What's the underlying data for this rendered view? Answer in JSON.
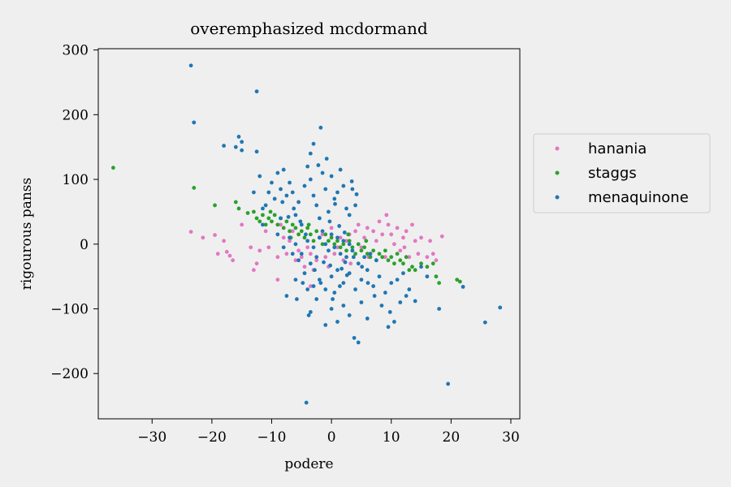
{
  "chart_data": {
    "type": "scatter",
    "title": "overemphasized mcdormand",
    "xlabel": "podere",
    "ylabel": "rigourous panss",
    "xlim": [
      -39,
      31.5
    ],
    "ylim": [
      -270,
      302
    ],
    "xticks": [
      -30,
      -20,
      -10,
      0,
      10,
      20,
      30
    ],
    "yticks": [
      -200,
      -100,
      0,
      100,
      200,
      300
    ],
    "grid": false,
    "legend_position": "outside-right",
    "series": [
      {
        "name": "hanania",
        "color": "#e377c2",
        "points": [
          [
            -23.5,
            19
          ],
          [
            -21.5,
            10
          ],
          [
            -19.5,
            14
          ],
          [
            -19,
            -15
          ],
          [
            -18,
            5
          ],
          [
            -17.5,
            -12
          ],
          [
            -17,
            -18
          ],
          [
            -16.5,
            -25
          ],
          [
            -15,
            30
          ],
          [
            -13,
            -40
          ],
          [
            -12.5,
            -30
          ],
          [
            -12,
            -10
          ],
          [
            -11,
            20
          ],
          [
            -10.5,
            -5
          ],
          [
            -9,
            -55
          ],
          [
            -9,
            -20
          ],
          [
            -8,
            10
          ],
          [
            -7.5,
            -15
          ],
          [
            -7,
            5
          ],
          [
            -6,
            -25
          ],
          [
            -5.5,
            -10
          ],
          [
            -5,
            -20
          ],
          [
            -4.5,
            -35
          ],
          [
            -4,
            -5
          ],
          [
            -3.5,
            -65
          ],
          [
            -3.5,
            -15
          ],
          [
            -2.5,
            -25
          ],
          [
            -2,
            10
          ],
          [
            -1,
            -20
          ],
          [
            -0.5,
            -35
          ],
          [
            0.5,
            -15
          ],
          [
            1,
            -5
          ],
          [
            1.5,
            10
          ],
          [
            2,
            -25
          ],
          [
            2.5,
            5
          ],
          [
            3,
            15
          ],
          [
            3.5,
            -10
          ],
          [
            4,
            20
          ],
          [
            4.5,
            30
          ],
          [
            5,
            -5
          ],
          [
            5.5,
            10
          ],
          [
            6,
            25
          ],
          [
            6.5,
            -15
          ],
          [
            7,
            20
          ],
          [
            7.5,
            5
          ],
          [
            8,
            35
          ],
          [
            8.5,
            15
          ],
          [
            9,
            -20
          ],
          [
            9.5,
            30
          ],
          [
            10,
            15
          ],
          [
            10.5,
            0
          ],
          [
            11,
            25
          ],
          [
            11.5,
            -10
          ],
          [
            12,
            10
          ],
          [
            12.5,
            20
          ],
          [
            13,
            -20
          ],
          [
            13.5,
            30
          ],
          [
            14,
            5
          ],
          [
            14.5,
            -15
          ],
          [
            15,
            10
          ],
          [
            16,
            -20
          ],
          [
            16.5,
            5
          ],
          [
            17,
            -15
          ],
          [
            17.5,
            -25
          ],
          [
            18.5,
            12
          ],
          [
            -6.5,
            20
          ],
          [
            -3,
            -40
          ],
          [
            -1.5,
            15
          ],
          [
            0,
            25
          ],
          [
            3.2,
            -30
          ],
          [
            6.2,
            -20
          ],
          [
            9.2,
            45
          ],
          [
            12.2,
            -5
          ],
          [
            -8.5,
            30
          ],
          [
            -13.5,
            -5
          ]
        ]
      },
      {
        "name": "staggs",
        "color": "#2ca02c",
        "points": [
          [
            -36.5,
            118
          ],
          [
            -23,
            87
          ],
          [
            -19.5,
            60
          ],
          [
            -16,
            65
          ],
          [
            -15.5,
            55
          ],
          [
            -14,
            48
          ],
          [
            -13,
            50
          ],
          [
            -12.5,
            40
          ],
          [
            -12,
            35
          ],
          [
            -11.5,
            45
          ],
          [
            -11,
            30
          ],
          [
            -10.5,
            40
          ],
          [
            -10,
            35
          ],
          [
            -9.5,
            45
          ],
          [
            -9,
            30
          ],
          [
            -8.5,
            40
          ],
          [
            -8,
            25
          ],
          [
            -7.5,
            35
          ],
          [
            -7,
            20
          ],
          [
            -6.5,
            30
          ],
          [
            -6,
            25
          ],
          [
            -5.5,
            15
          ],
          [
            -5,
            20
          ],
          [
            -4.5,
            10
          ],
          [
            -4,
            25
          ],
          [
            -3.5,
            15
          ],
          [
            -3,
            5
          ],
          [
            -2.5,
            20
          ],
          [
            -2,
            10
          ],
          [
            -1.5,
            0
          ],
          [
            -1,
            15
          ],
          [
            -0.5,
            5
          ],
          [
            0,
            10
          ],
          [
            0.5,
            0
          ],
          [
            1,
            5
          ],
          [
            1.5,
            -5
          ],
          [
            2,
            0
          ],
          [
            2.5,
            -10
          ],
          [
            3,
            5
          ],
          [
            3.5,
            -5
          ],
          [
            4,
            -15
          ],
          [
            4.5,
            0
          ],
          [
            5,
            -10
          ],
          [
            5.5,
            -5
          ],
          [
            6,
            -15
          ],
          [
            6.5,
            -20
          ],
          [
            7,
            -10
          ],
          [
            7.5,
            -25
          ],
          [
            8,
            -15
          ],
          [
            8.5,
            -20
          ],
          [
            9,
            -10
          ],
          [
            9.5,
            -25
          ],
          [
            10,
            -20
          ],
          [
            10.5,
            -30
          ],
          [
            11,
            -15
          ],
          [
            11.5,
            -25
          ],
          [
            12,
            -30
          ],
          [
            12.5,
            -20
          ],
          [
            13,
            -40
          ],
          [
            13.5,
            -35
          ],
          [
            14,
            -40
          ],
          [
            15,
            -30
          ],
          [
            16,
            -35
          ],
          [
            17,
            -30
          ],
          [
            17.5,
            -50
          ],
          [
            18,
            -60
          ],
          [
            21,
            -55
          ],
          [
            21.5,
            -58
          ],
          [
            -3.8,
            30
          ],
          [
            2.8,
            15
          ],
          [
            5.8,
            5
          ],
          [
            -10.2,
            50
          ],
          [
            -6.8,
            10
          ]
        ]
      },
      {
        "name": "menaquinone",
        "color": "#1f77b4",
        "points": [
          [
            -23.5,
            276
          ],
          [
            -23,
            188
          ],
          [
            -18,
            152
          ],
          [
            -16,
            150
          ],
          [
            -15.5,
            166
          ],
          [
            -15,
            158
          ],
          [
            -15,
            145
          ],
          [
            -12.5,
            143
          ],
          [
            -12.5,
            236
          ],
          [
            -13,
            80
          ],
          [
            -12,
            105
          ],
          [
            -11.5,
            30
          ],
          [
            -11,
            60
          ],
          [
            -10,
            95
          ],
          [
            -9.5,
            70
          ],
          [
            -9,
            110
          ],
          [
            -8.5,
            85
          ],
          [
            -8,
            115
          ],
          [
            -7.5,
            75
          ],
          [
            -7,
            95
          ],
          [
            -6.5,
            80
          ],
          [
            -6,
            45
          ],
          [
            -5.5,
            65
          ],
          [
            -5,
            30
          ],
          [
            -4.5,
            90
          ],
          [
            -4,
            120
          ],
          [
            -3.5,
            140
          ],
          [
            -3.5,
            100
          ],
          [
            -3,
            155
          ],
          [
            -3,
            75
          ],
          [
            -2.5,
            60
          ],
          [
            -2,
            40
          ],
          [
            -1.5,
            110
          ],
          [
            -1,
            85
          ],
          [
            -0.5,
            50
          ],
          [
            0,
            105
          ],
          [
            0.5,
            70
          ],
          [
            1,
            80
          ],
          [
            1.5,
            115
          ],
          [
            2,
            90
          ],
          [
            2.5,
            55
          ],
          [
            3,
            45
          ],
          [
            3.5,
            85
          ],
          [
            4,
            60
          ],
          [
            -1.5,
            20
          ],
          [
            -1,
            0
          ],
          [
            -0.5,
            -10
          ],
          [
            0,
            15
          ],
          [
            0.5,
            -5
          ],
          [
            1,
            10
          ],
          [
            1.5,
            -15
          ],
          [
            2,
            5
          ],
          [
            2.5,
            -20
          ],
          [
            3,
            0
          ],
          [
            3.5,
            -10
          ],
          [
            -2,
            10
          ],
          [
            -3,
            -5
          ],
          [
            -4,
            5
          ],
          [
            -5,
            -15
          ],
          [
            -6,
            0
          ],
          [
            -7,
            10
          ],
          [
            -8,
            -5
          ],
          [
            -9,
            15
          ],
          [
            -2.5,
            -20
          ],
          [
            -3.5,
            -30
          ],
          [
            -4.5,
            -45
          ],
          [
            -5.5,
            -25
          ],
          [
            -6.5,
            -15
          ],
          [
            -3,
            -65
          ],
          [
            -2,
            -55
          ],
          [
            -1,
            -70
          ],
          [
            0,
            -50
          ],
          [
            1,
            -40
          ],
          [
            2,
            -60
          ],
          [
            3,
            -45
          ],
          [
            4,
            -70
          ],
          [
            5,
            -55
          ],
          [
            6,
            -40
          ],
          [
            7,
            -65
          ],
          [
            8,
            -50
          ],
          [
            9,
            -75
          ],
          [
            10,
            -60
          ],
          [
            11,
            -55
          ],
          [
            12,
            -45
          ],
          [
            4.5,
            -30
          ],
          [
            5.5,
            -20
          ],
          [
            6.5,
            -15
          ],
          [
            7.5,
            -25
          ],
          [
            3.8,
            -145
          ],
          [
            4.5,
            -152
          ],
          [
            9.5,
            -128
          ],
          [
            10.5,
            -120
          ],
          [
            -4.2,
            -245
          ],
          [
            19.5,
            -216
          ],
          [
            25.7,
            -121
          ],
          [
            28.2,
            -98
          ],
          [
            22,
            -66
          ],
          [
            18,
            -100
          ],
          [
            14,
            -88
          ],
          [
            -3.5,
            -105
          ],
          [
            -2.5,
            -85
          ],
          [
            -1,
            -125
          ],
          [
            0,
            -100
          ],
          [
            1,
            -120
          ],
          [
            2,
            -95
          ],
          [
            3,
            -110
          ],
          [
            5,
            -90
          ],
          [
            6,
            -115
          ],
          [
            -3.8,
            -110
          ],
          [
            0.5,
            -75
          ],
          [
            -7.5,
            -80
          ],
          [
            -6,
            -55
          ],
          [
            -4,
            -70
          ],
          [
            11.5,
            -90
          ],
          [
            12.5,
            -80
          ],
          [
            13,
            -70
          ],
          [
            15,
            -35
          ],
          [
            16,
            -50
          ],
          [
            -10.5,
            80
          ],
          [
            -11.5,
            55
          ],
          [
            -8.5,
            40
          ],
          [
            -1.8,
            180
          ],
          [
            -2.2,
            122
          ],
          [
            -0.8,
            132
          ],
          [
            0.6,
            62
          ],
          [
            3.4,
            97
          ],
          [
            4.2,
            77
          ],
          [
            -0.3,
            35
          ],
          [
            1.3,
            28
          ],
          [
            2.2,
            18
          ],
          [
            -1.3,
            -28
          ],
          [
            -0.2,
            -33
          ],
          [
            1.7,
            -38
          ],
          [
            2.6,
            -48
          ],
          [
            3.7,
            -20
          ],
          [
            5.1,
            -35
          ],
          [
            6.1,
            -60
          ],
          [
            7.2,
            -80
          ],
          [
            8.4,
            -95
          ],
          [
            9.8,
            -105
          ],
          [
            -5.8,
            -85
          ],
          [
            -4.8,
            -60
          ],
          [
            -2.8,
            -40
          ],
          [
            -1.8,
            -60
          ],
          [
            0.2,
            -85
          ],
          [
            1.4,
            -65
          ],
          [
            2.3,
            -28
          ],
          [
            -4.3,
            15
          ],
          [
            -5.2,
            35
          ],
          [
            -6.3,
            55
          ],
          [
            -7.2,
            42
          ],
          [
            -8.2,
            65
          ]
        ]
      }
    ]
  }
}
